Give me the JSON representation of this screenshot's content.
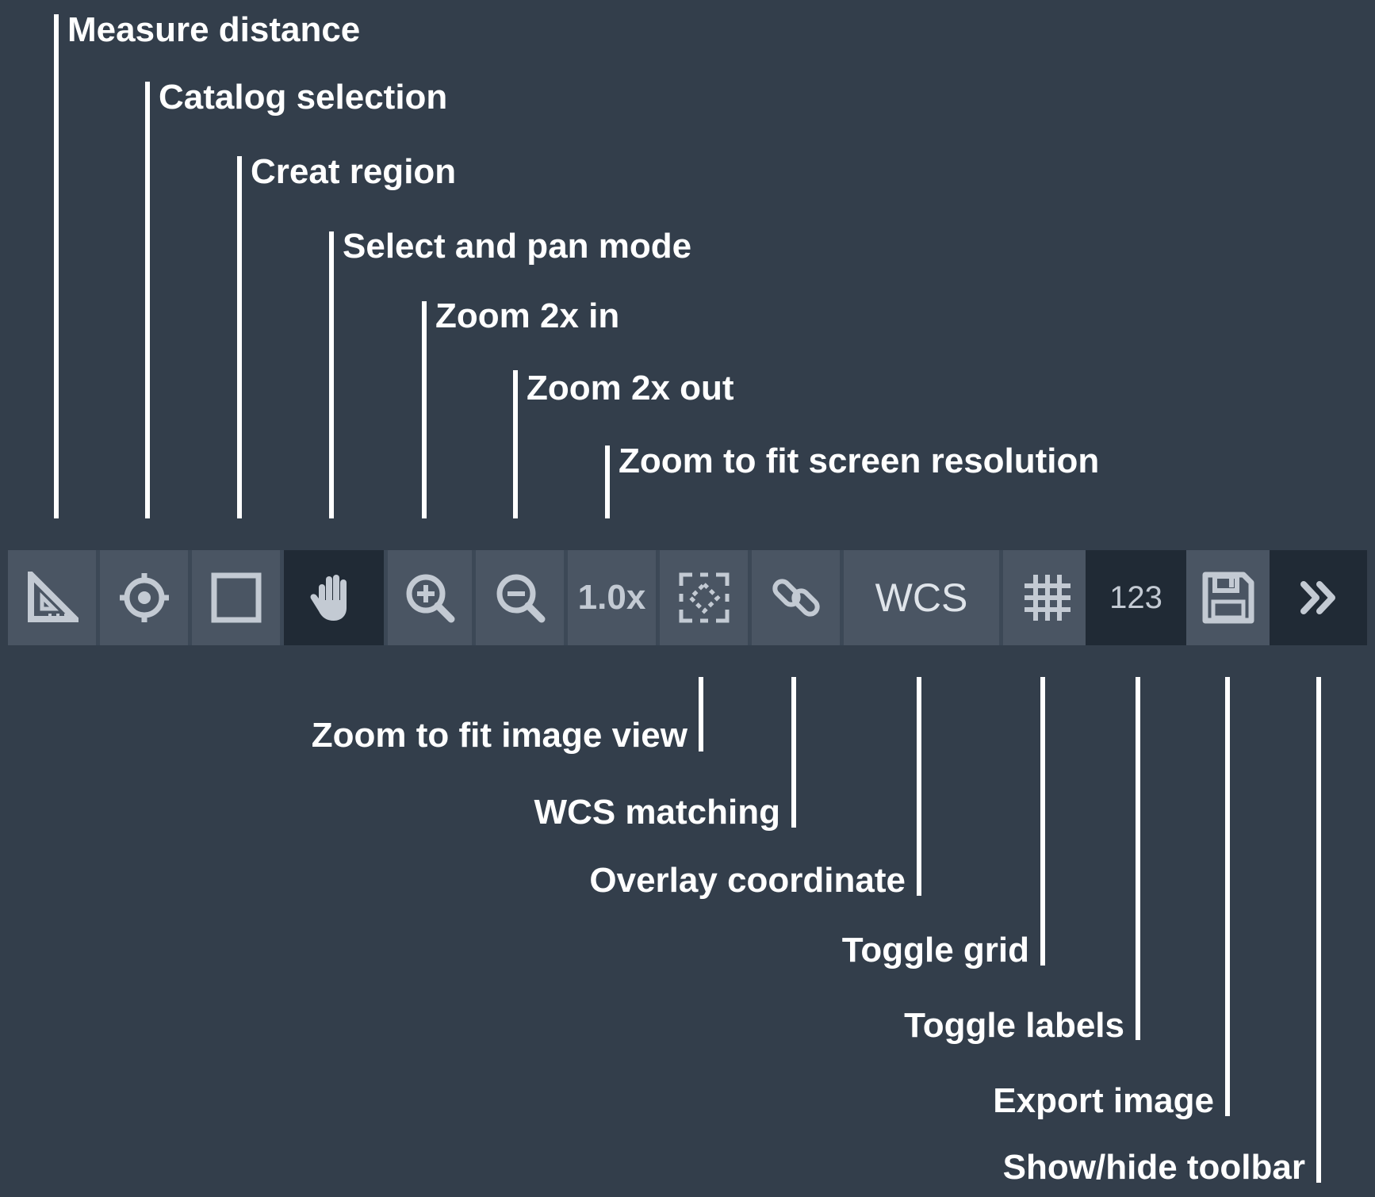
{
  "toolbar": {
    "zoom_level": "1.0x",
    "wcs_label": "WCS",
    "labels_button": "123",
    "buttons": [
      {
        "id": "measure",
        "icon": "ruler-triangle-icon"
      },
      {
        "id": "catalog",
        "icon": "crosshair-icon"
      },
      {
        "id": "region",
        "icon": "rectangle-icon"
      },
      {
        "id": "pan",
        "icon": "hand-icon",
        "active": true
      },
      {
        "id": "zoom-in",
        "icon": "zoom-in-icon"
      },
      {
        "id": "zoom-out",
        "icon": "zoom-out-icon"
      },
      {
        "id": "zoom-fit-screen",
        "label": "1.0x"
      },
      {
        "id": "zoom-fit-view",
        "icon": "fit-frame-icon"
      },
      {
        "id": "wcs-match",
        "icon": "link-icon"
      },
      {
        "id": "overlay-coord",
        "label": "WCS"
      },
      {
        "id": "grid",
        "icon": "grid-icon"
      },
      {
        "id": "labels",
        "label": "123",
        "active": true
      },
      {
        "id": "export",
        "icon": "floppy-disk-icon"
      },
      {
        "id": "toggle-toolbar",
        "icon": "double-chevron-right-icon",
        "active": true
      }
    ]
  },
  "callouts": {
    "top": [
      "Measure distance",
      "Catalog selection",
      "Creat region",
      "Select and pan mode",
      "Zoom 2x in",
      "Zoom 2x out",
      "Zoom to fit screen resolution"
    ],
    "bottom": [
      "Zoom to fit image view",
      "WCS matching",
      "Overlay coordinate",
      "Toggle grid",
      "Toggle labels",
      "Export image",
      "Show/hide toolbar"
    ]
  },
  "colors": {
    "background": "#333e4b",
    "button": "#4a5563",
    "button_active": "#202a35",
    "icon": "#c3cad3",
    "text": "#ffffff"
  }
}
